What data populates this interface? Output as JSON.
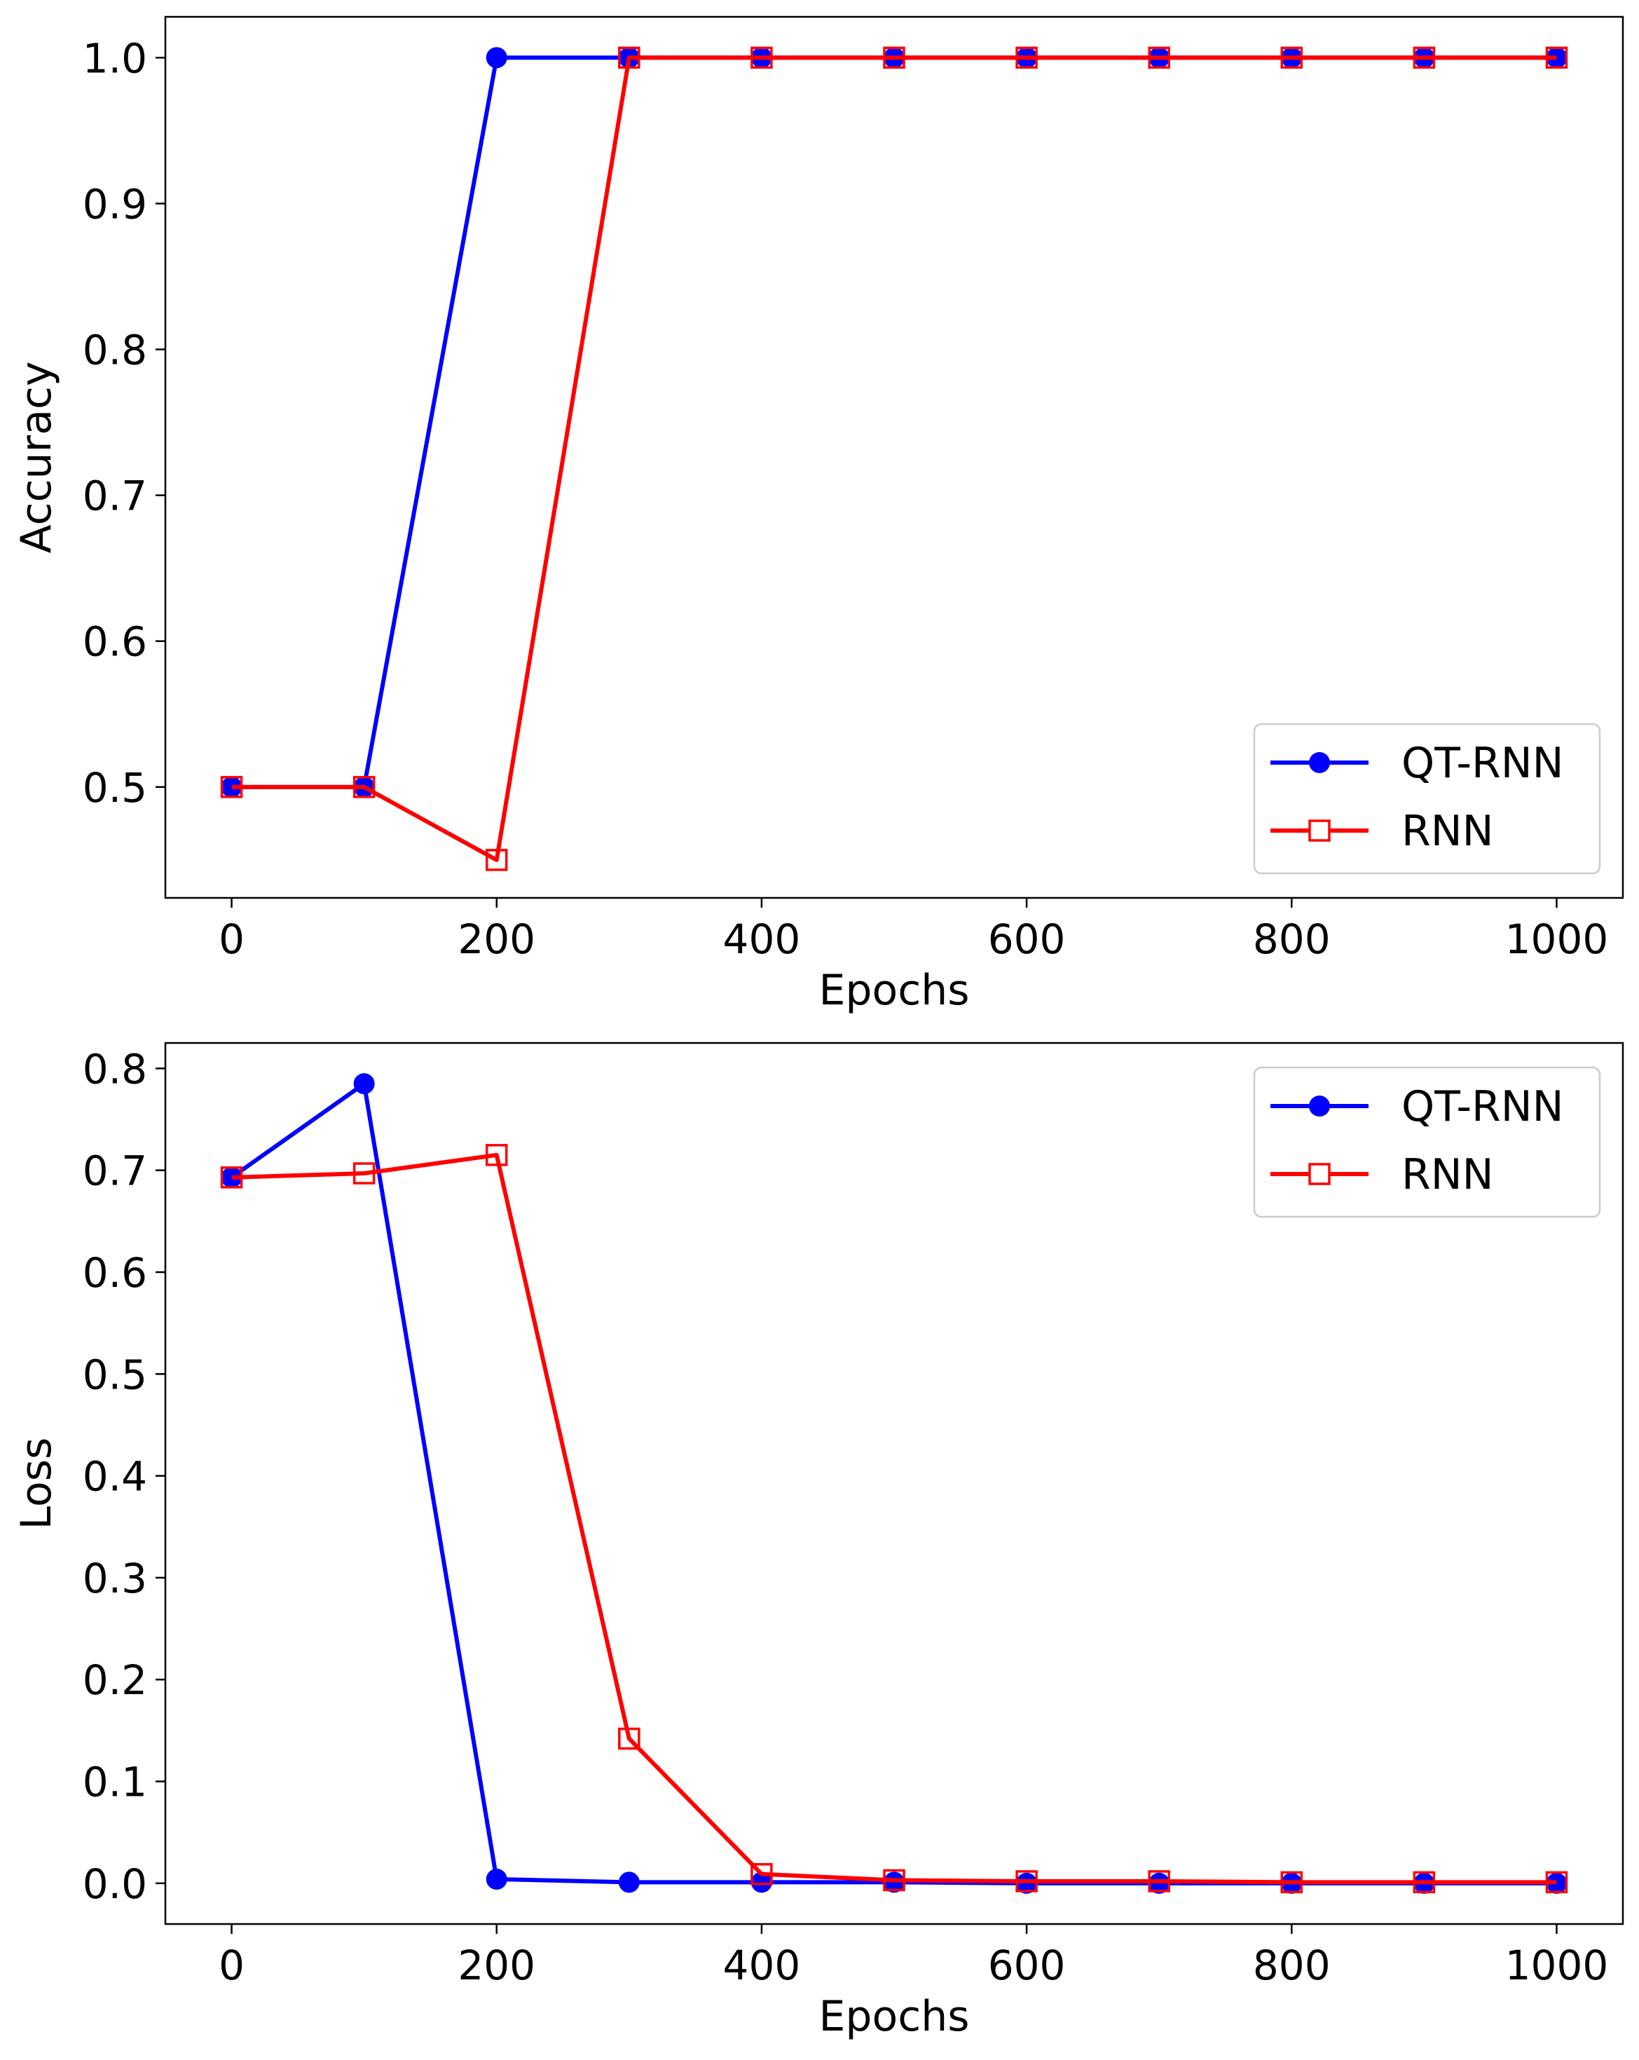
{
  "colors": {
    "qt_rnn": "#0000ff",
    "rnn": "#ff0000",
    "axis": "#000000",
    "legend_border": "#cccccc"
  },
  "chart_data": [
    {
      "type": "line",
      "id": "accuracy",
      "title": "",
      "xlabel": "Epochs",
      "ylabel": "Accuracy",
      "x": [
        0,
        100,
        200,
        300,
        400,
        500,
        600,
        700,
        800,
        900,
        1000
      ],
      "xlim": [
        -50,
        1050
      ],
      "ylim": [
        0.424,
        1.028
      ],
      "xticks": [
        0,
        200,
        400,
        600,
        800,
        1000
      ],
      "xtick_labels": [
        "0",
        "200",
        "400",
        "600",
        "800",
        "1000"
      ],
      "yticks": [
        0.5,
        0.6,
        0.7,
        0.8,
        0.9,
        1.0
      ],
      "ytick_labels": [
        "0.5",
        "0.6",
        "0.7",
        "0.8",
        "0.9",
        "1.0"
      ],
      "legend_position": "lower-right",
      "series": [
        {
          "name": "QT-RNN",
          "marker": "circle",
          "values": [
            0.5,
            0.5,
            1.0,
            1.0,
            1.0,
            1.0,
            1.0,
            1.0,
            1.0,
            1.0,
            1.0
          ]
        },
        {
          "name": "RNN",
          "marker": "square-open",
          "values": [
            0.5,
            0.5,
            0.45,
            1.0,
            1.0,
            1.0,
            1.0,
            1.0,
            1.0,
            1.0,
            1.0
          ]
        }
      ]
    },
    {
      "type": "line",
      "id": "loss",
      "title": "",
      "xlabel": "Epochs",
      "ylabel": "Loss",
      "x": [
        0,
        100,
        200,
        300,
        400,
        500,
        600,
        700,
        800,
        900,
        1000
      ],
      "xlim": [
        -50,
        1050
      ],
      "ylim": [
        -0.04,
        0.825
      ],
      "xticks": [
        0,
        200,
        400,
        600,
        800,
        1000
      ],
      "xtick_labels": [
        "0",
        "200",
        "400",
        "600",
        "800",
        "1000"
      ],
      "yticks": [
        0.0,
        0.1,
        0.2,
        0.3,
        0.4,
        0.5,
        0.6,
        0.7,
        0.8
      ],
      "ytick_labels": [
        "0.0",
        "0.1",
        "0.2",
        "0.3",
        "0.4",
        "0.5",
        "0.6",
        "0.7",
        "0.8"
      ],
      "legend_position": "upper-right",
      "series": [
        {
          "name": "QT-RNN",
          "marker": "circle",
          "values": [
            0.693,
            0.785,
            0.004,
            0.001,
            0.001,
            0.001,
            0.0,
            0.0,
            0.0,
            0.0,
            0.0
          ]
        },
        {
          "name": "RNN",
          "marker": "square-open",
          "values": [
            0.693,
            0.697,
            0.715,
            0.142,
            0.009,
            0.003,
            0.002,
            0.002,
            0.001,
            0.001,
            0.001
          ]
        }
      ]
    }
  ]
}
